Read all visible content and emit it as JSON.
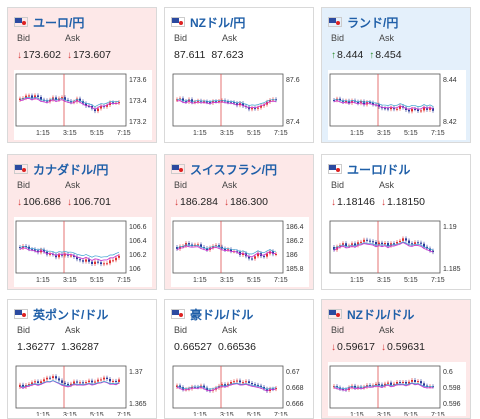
{
  "labels": {
    "bid": "Bid",
    "ask": "Ask"
  },
  "colors": {
    "down_bg": "#fde8e8",
    "up_bg": "#e4f0fb",
    "up_candle": "#e03030",
    "down_candle": "#2b3a9a",
    "ma1": "#c93ad0",
    "ma2": "#3aa0d0"
  },
  "xticks": [
    "1:15",
    "3:15",
    "5:15",
    "7:15"
  ],
  "cards": [
    {
      "pair": "ユーロ/円",
      "flag": "eu-jp-flag-icon",
      "trend": "down",
      "bid": "173.602",
      "ask": "173.607",
      "arrow": "down",
      "yticks": [
        "173.6",
        "173.4",
        "173.2"
      ]
    },
    {
      "pair": "NZドル/円",
      "flag": "nz-jp-flag-icon",
      "trend": "flat",
      "bid": "87.611",
      "ask": "87.623",
      "arrow": "none",
      "yticks": [
        "87.6",
        "87.4"
      ]
    },
    {
      "pair": "ランド/円",
      "flag": "za-jp-flag-icon",
      "trend": "up",
      "bid": "8.444",
      "ask": "8.454",
      "arrow": "up",
      "yticks": [
        "8.44",
        "8.42"
      ]
    },
    {
      "pair": "カナダドル/円",
      "flag": "ca-jp-flag-icon",
      "trend": "down",
      "bid": "106.686",
      "ask": "106.701",
      "arrow": "down",
      "yticks": [
        "106.6",
        "106.4",
        "106.2",
        "106"
      ]
    },
    {
      "pair": "スイスフラン/円",
      "flag": "ch-jp-flag-icon",
      "trend": "down",
      "bid": "186.284",
      "ask": "186.300",
      "arrow": "down",
      "yticks": [
        "186.4",
        "186.2",
        "186",
        "185.8"
      ]
    },
    {
      "pair": "ユーロ/ドル",
      "flag": "eu-us-flag-icon",
      "trend": "flat",
      "bid": "1.18146",
      "ask": "1.18150",
      "arrow": "down",
      "yticks": [
        "1.19",
        "1.185"
      ]
    },
    {
      "pair": "英ポンド/ドル",
      "flag": "uk-us-flag-icon",
      "trend": "flat",
      "bid": "1.36277",
      "ask": "1.36287",
      "arrow": "none",
      "yticks": [
        "1.37",
        "1.365"
      ]
    },
    {
      "pair": "豪ドル/ドル",
      "flag": "au-us-flag-icon",
      "trend": "flat",
      "bid": "0.66527",
      "ask": "0.66536",
      "arrow": "none",
      "yticks": [
        "0.67",
        "0.668",
        "0.666"
      ]
    },
    {
      "pair": "NZドル/ドル",
      "flag": "nz-us-flag-icon",
      "trend": "down",
      "bid": "0.59617",
      "ask": "0.59631",
      "arrow": "down",
      "yticks": [
        "0.6",
        "0.598",
        "0.596"
      ]
    }
  ]
}
